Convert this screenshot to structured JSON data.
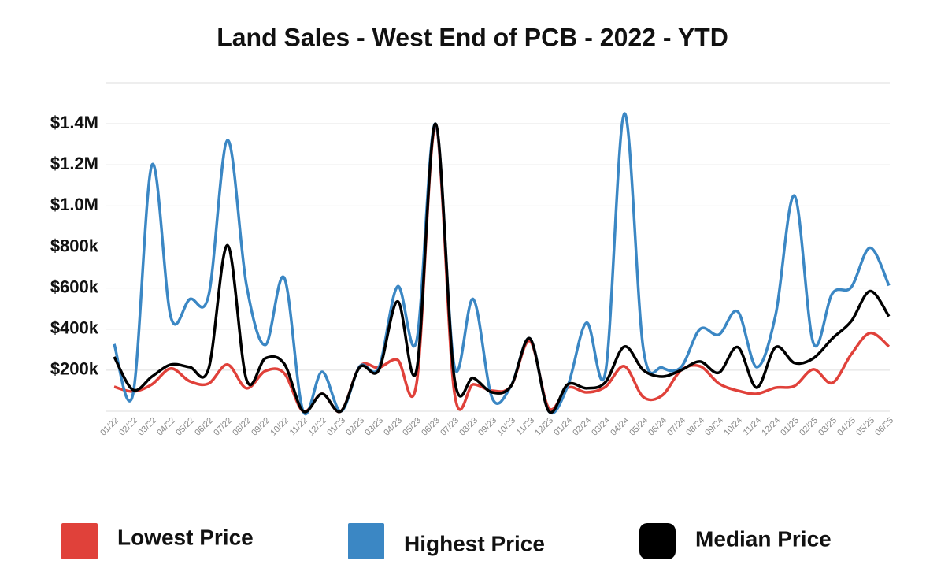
{
  "chart_data": {
    "type": "line",
    "title": "Land Sales - West End of PCB - 2022 - YTD",
    "categories": [
      "01/22",
      "02/22",
      "03/22",
      "04/22",
      "05/22",
      "06/22",
      "07/22",
      "08/22",
      "09/22",
      "10/22",
      "11/22",
      "12/22",
      "01/23",
      "02/23",
      "03/23",
      "04/23",
      "05/23",
      "06/23",
      "07/23",
      "08/23",
      "09/23",
      "10/23",
      "11/23",
      "12/23",
      "01/24",
      "02/24",
      "03/24",
      "04/24",
      "05/24",
      "06/24",
      "07/24",
      "08/24",
      "09/24",
      "10/24",
      "11/24",
      "12/24",
      "01/25",
      "02/25",
      "03/25",
      "04/25",
      "05/25",
      "06/25"
    ],
    "series": [
      {
        "name": "Lowest Price",
        "color": "#e0413a",
        "values": [
          119000,
          96000,
          131000,
          208000,
          146000,
          135000,
          227000,
          112000,
          196000,
          185000,
          0,
          85000,
          0,
          219000,
          212000,
          250000,
          135000,
          1385000,
          92000,
          131000,
          100000,
          123000,
          342000,
          15000,
          115000,
          92000,
          119000,
          219000,
          69000,
          77000,
          200000,
          219000,
          135000,
          100000,
          85000,
          115000,
          123000,
          204000,
          138000,
          277000,
          381000,
          315000
        ]
      },
      {
        "name": "Highest Price",
        "color": "#3b87c4",
        "values": [
          327000,
          85000,
          1200000,
          458000,
          546000,
          565000,
          1320000,
          615000,
          323000,
          650000,
          0,
          192000,
          0,
          219000,
          212000,
          608000,
          342000,
          1400000,
          219000,
          546000,
          65000,
          123000,
          354000,
          0,
          123000,
          431000,
          192000,
          1450000,
          304000,
          212000,
          215000,
          400000,
          373000,
          485000,
          215000,
          469000,
          1050000,
          331000,
          573000,
          604000,
          796000,
          612000
        ]
      },
      {
        "name": "Median Price",
        "color": "#000000",
        "values": [
          265000,
          104000,
          169000,
          227000,
          215000,
          208000,
          808000,
          154000,
          258000,
          231000,
          0,
          85000,
          0,
          215000,
          200000,
          535000,
          200000,
          1400000,
          162000,
          162000,
          92000,
          123000,
          354000,
          0,
          131000,
          112000,
          142000,
          315000,
          200000,
          169000,
          200000,
          242000,
          188000,
          312000,
          115000,
          312000,
          235000,
          258000,
          354000,
          438000,
          585000,
          462000
        ]
      }
    ],
    "ylim": [
      0,
      1600000
    ],
    "yticks": [
      {
        "value": 200000,
        "label": "$200k"
      },
      {
        "value": 400000,
        "label": "$400k"
      },
      {
        "value": 600000,
        "label": "$600k"
      },
      {
        "value": 800000,
        "label": "$800k"
      },
      {
        "value": 1000000,
        "label": "$1.0M"
      },
      {
        "value": 1200000,
        "label": "$1.2M"
      },
      {
        "value": 1400000,
        "label": "$1.4M"
      }
    ],
    "grid": true
  }
}
